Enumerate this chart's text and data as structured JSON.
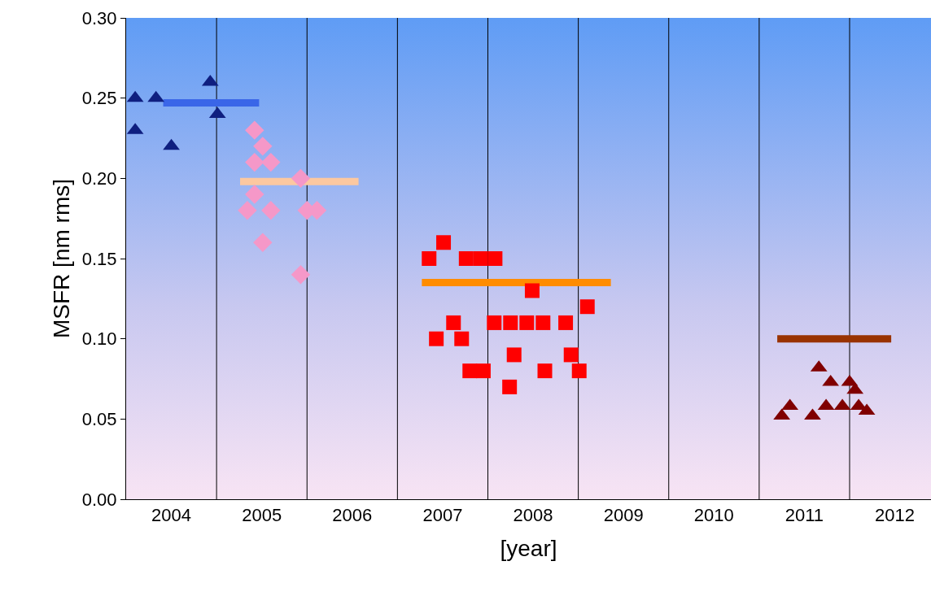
{
  "chart_data": {
    "type": "scatter",
    "xlabel": "[year]",
    "ylabel": "MSFR [nm rms]",
    "xlim": [
      2004,
      2012.9
    ],
    "ylim": [
      0,
      0.3
    ],
    "xticks": [
      {
        "value": 2004.5,
        "label": "2004"
      },
      {
        "value": 2005,
        "label": null
      },
      {
        "value": 2005.5,
        "label": "2005"
      },
      {
        "value": 2006,
        "label": null
      },
      {
        "value": 2006.5,
        "label": "2006"
      },
      {
        "value": 2007,
        "label": null
      },
      {
        "value": 2007.5,
        "label": "2007"
      },
      {
        "value": 2008,
        "label": null
      },
      {
        "value": 2008.5,
        "label": "2008"
      },
      {
        "value": 2009,
        "label": null
      },
      {
        "value": 2009.5,
        "label": "2009"
      },
      {
        "value": 2010,
        "label": null
      },
      {
        "value": 2010.5,
        "label": "2010"
      },
      {
        "value": 2011,
        "label": null
      },
      {
        "value": 2011.5,
        "label": "2011"
      },
      {
        "value": 2012,
        "label": null
      },
      {
        "value": 2012.5,
        "label": "2012"
      }
    ],
    "yticks": [
      {
        "value": 0,
        "label": "0.00"
      },
      {
        "value": 0.05,
        "label": "0.05"
      },
      {
        "value": 0.1,
        "label": "0.10"
      },
      {
        "value": 0.15,
        "label": "0.15"
      },
      {
        "value": 0.2,
        "label": "0.20"
      },
      {
        "value": 0.25,
        "label": "0.25"
      },
      {
        "value": 0.3,
        "label": "0.30"
      }
    ],
    "grid": "x",
    "series": [
      {
        "marker": "triangle",
        "color": "#0f1f80",
        "x": [
          2004.1,
          2004.33,
          2004.1,
          2004.5,
          2004.93,
          2005.01
        ],
        "values": [
          0.25,
          0.25,
          0.23,
          0.22,
          0.26,
          0.24
        ]
      },
      {
        "type": "line",
        "marker": "none",
        "color": "#3a66e8",
        "x": [
          2004.41,
          2005.47
        ],
        "values": [
          0.247,
          0.247
        ]
      },
      {
        "marker": "diamond",
        "color": "#f598c8",
        "x": [
          2005.42,
          2005.51,
          2005.6,
          2005.42,
          2005.42,
          2005.34,
          2005.6,
          2005.51,
          2005.93,
          2006.0,
          2006.11,
          2005.93
        ],
        "values": [
          0.23,
          0.22,
          0.21,
          0.21,
          0.19,
          0.18,
          0.18,
          0.16,
          0.2,
          0.18,
          0.18,
          0.14
        ]
      },
      {
        "type": "line",
        "marker": "none",
        "color": "#fcc8a0",
        "x": [
          2005.26,
          2006.57
        ],
        "values": [
          0.198,
          0.198
        ]
      },
      {
        "marker": "square",
        "color": "#ff0000",
        "x": [
          2007.35,
          2007.51,
          2007.76,
          2007.92,
          2008.08,
          2007.62,
          2007.43,
          2007.71,
          2007.95,
          2007.8,
          2008.07,
          2008.25,
          2008.43,
          2008.61,
          2008.86,
          2008.49,
          2008.29,
          2008.24,
          2008.63,
          2008.92,
          2009.01,
          2009.1
        ],
        "values": [
          0.15,
          0.16,
          0.15,
          0.15,
          0.15,
          0.11,
          0.1,
          0.1,
          0.08,
          0.08,
          0.11,
          0.11,
          0.11,
          0.11,
          0.11,
          0.13,
          0.09,
          0.07,
          0.08,
          0.09,
          0.08,
          0.12
        ]
      },
      {
        "type": "line",
        "marker": "none",
        "color": "#ff8c00",
        "x": [
          2007.27,
          2009.36
        ],
        "values": [
          0.135,
          0.135
        ]
      },
      {
        "marker": "triangle",
        "color": "#800000",
        "x": [
          2011.25,
          2011.34,
          2011.59,
          2011.66,
          2011.79,
          2011.74,
          2011.92,
          2012.0,
          2012.1,
          2012.19,
          2012.06
        ],
        "values": [
          0.052,
          0.058,
          0.052,
          0.082,
          0.073,
          0.058,
          0.058,
          0.073,
          0.058,
          0.055,
          0.068
        ]
      },
      {
        "type": "line",
        "marker": "none",
        "color": "#993300",
        "x": [
          2011.2,
          2012.46
        ],
        "values": [
          0.1,
          0.1
        ]
      }
    ]
  }
}
